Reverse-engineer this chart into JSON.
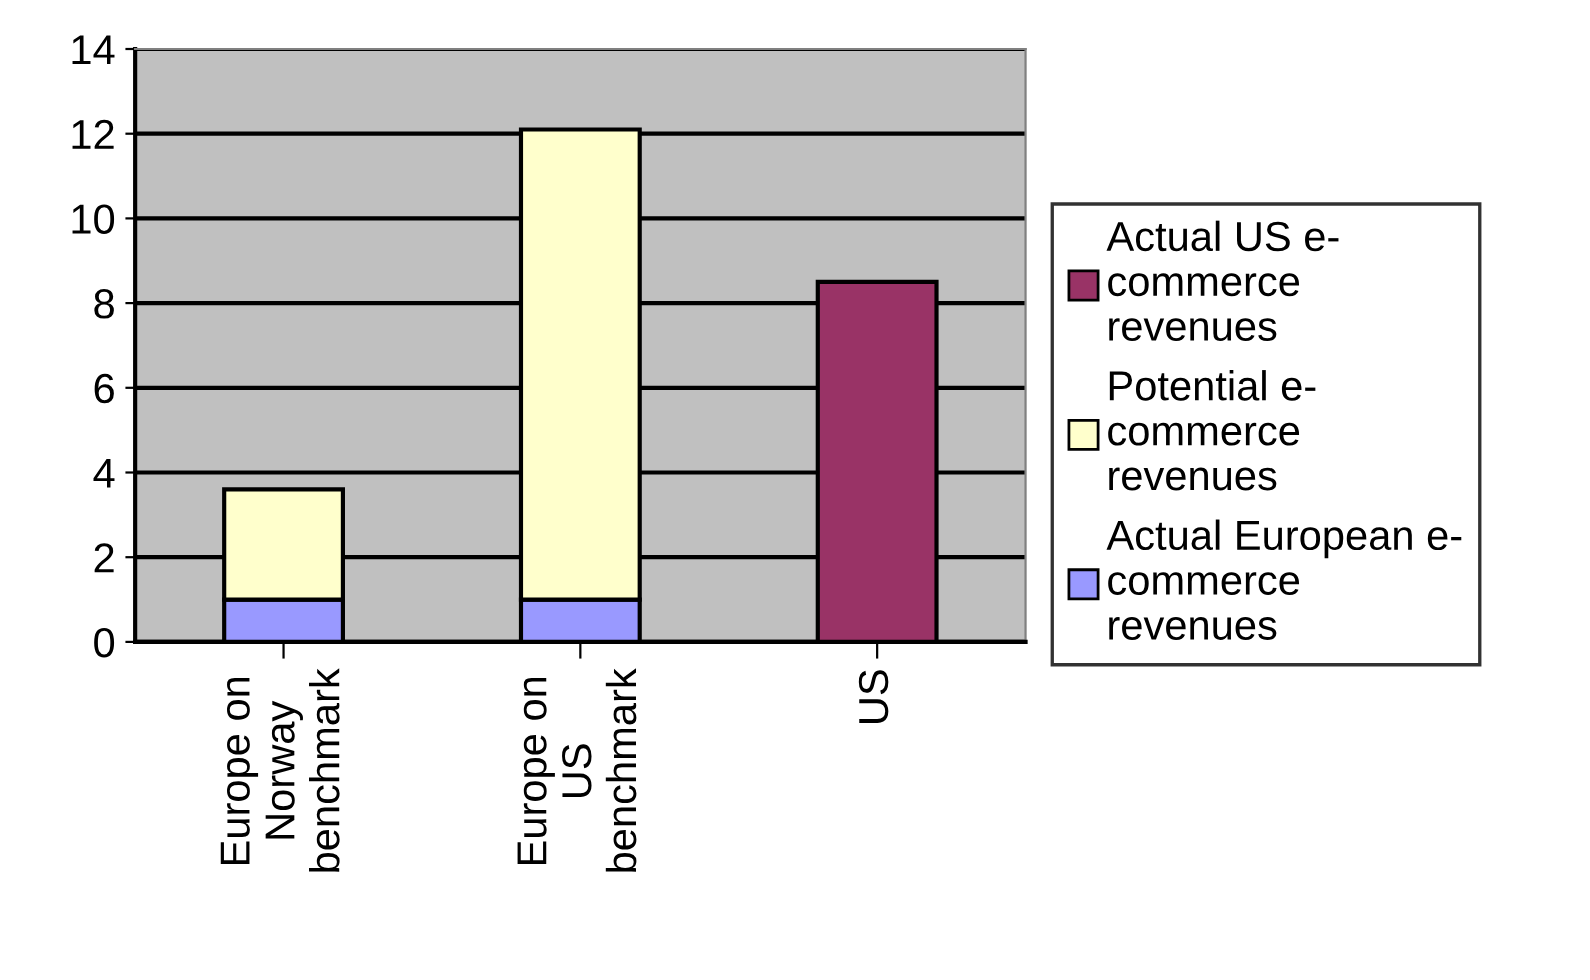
{
  "chart_data": {
    "type": "bar",
    "stacked": true,
    "categories": [
      "Europe on\nNorway\nbenchmark",
      "Europe on\nUS\nbenchmark",
      "US"
    ],
    "series": [
      {
        "name": "Actual European e-\ncommerce\nrevenues",
        "color": "#9999ff",
        "values": [
          1,
          1,
          null
        ]
      },
      {
        "name": "Potential e-\ncommerce\nrevenues",
        "color": "#ffffcc",
        "values": [
          2.6,
          11.1,
          null
        ]
      },
      {
        "name": "Actual US e-\ncommerce\nrevenues",
        "color": "#993366",
        "values": [
          null,
          null,
          8.5
        ]
      }
    ],
    "ylim": [
      0,
      14
    ],
    "yticks": [
      0,
      2,
      4,
      6,
      8,
      10,
      12,
      14
    ],
    "grid": "y",
    "legend": "right"
  }
}
